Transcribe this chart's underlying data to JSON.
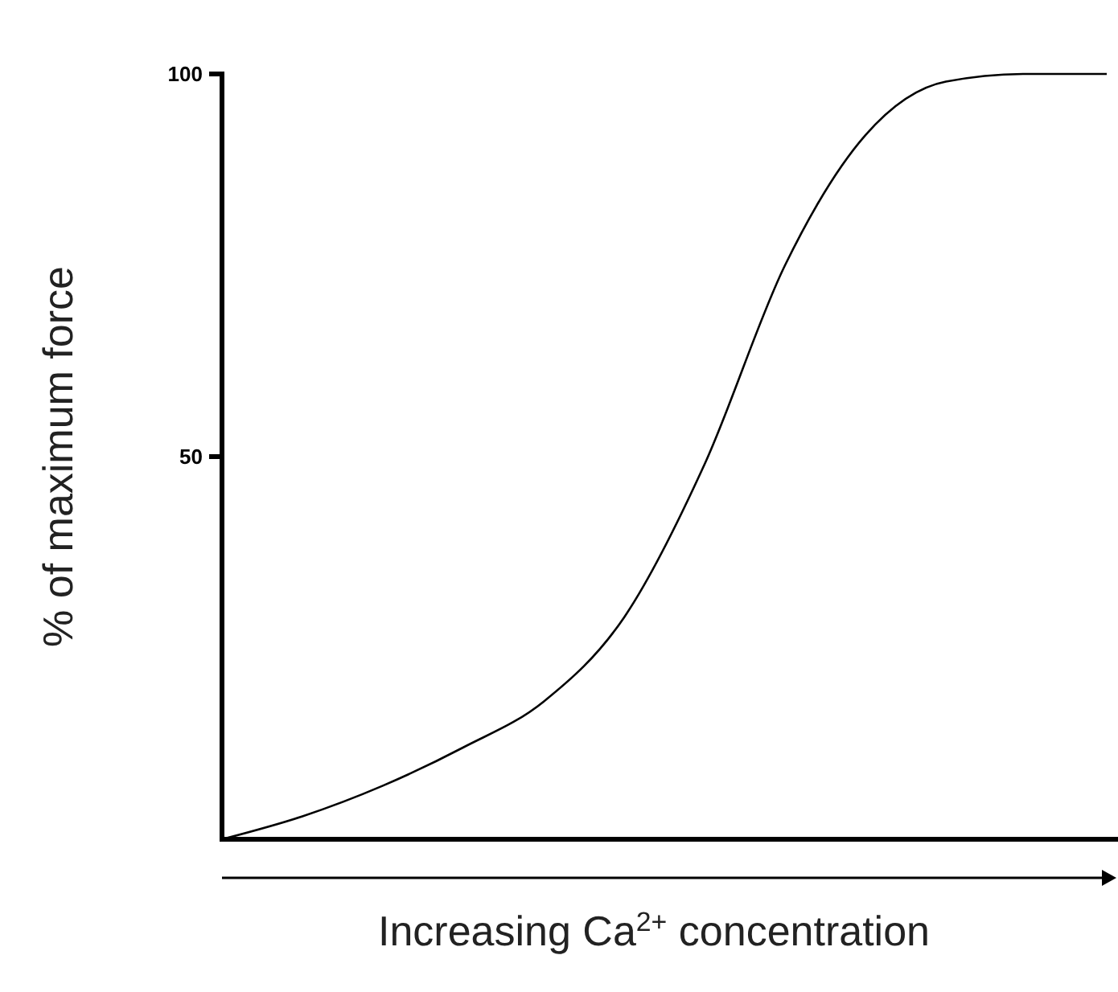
{
  "chart_data": {
    "type": "line",
    "xlabel": "Increasing Ca$^{2+}$ concentration",
    "ylabel": "% of maximum force",
    "categories": [
      null,
      null,
      null,
      null,
      null,
      null,
      null,
      null,
      null,
      null,
      null,
      null
    ],
    "series": [
      {
        "color": "#000000",
        "values": [
          0,
          3,
          7,
          12,
          18,
          29,
          49,
          75,
          92,
          99,
          100,
          100
        ]
      }
    ],
    "ylim": [
      0,
      100
    ],
    "yticks": [
      50,
      100
    ],
    "tick_labels": "y",
    "marker": "none"
  }
}
